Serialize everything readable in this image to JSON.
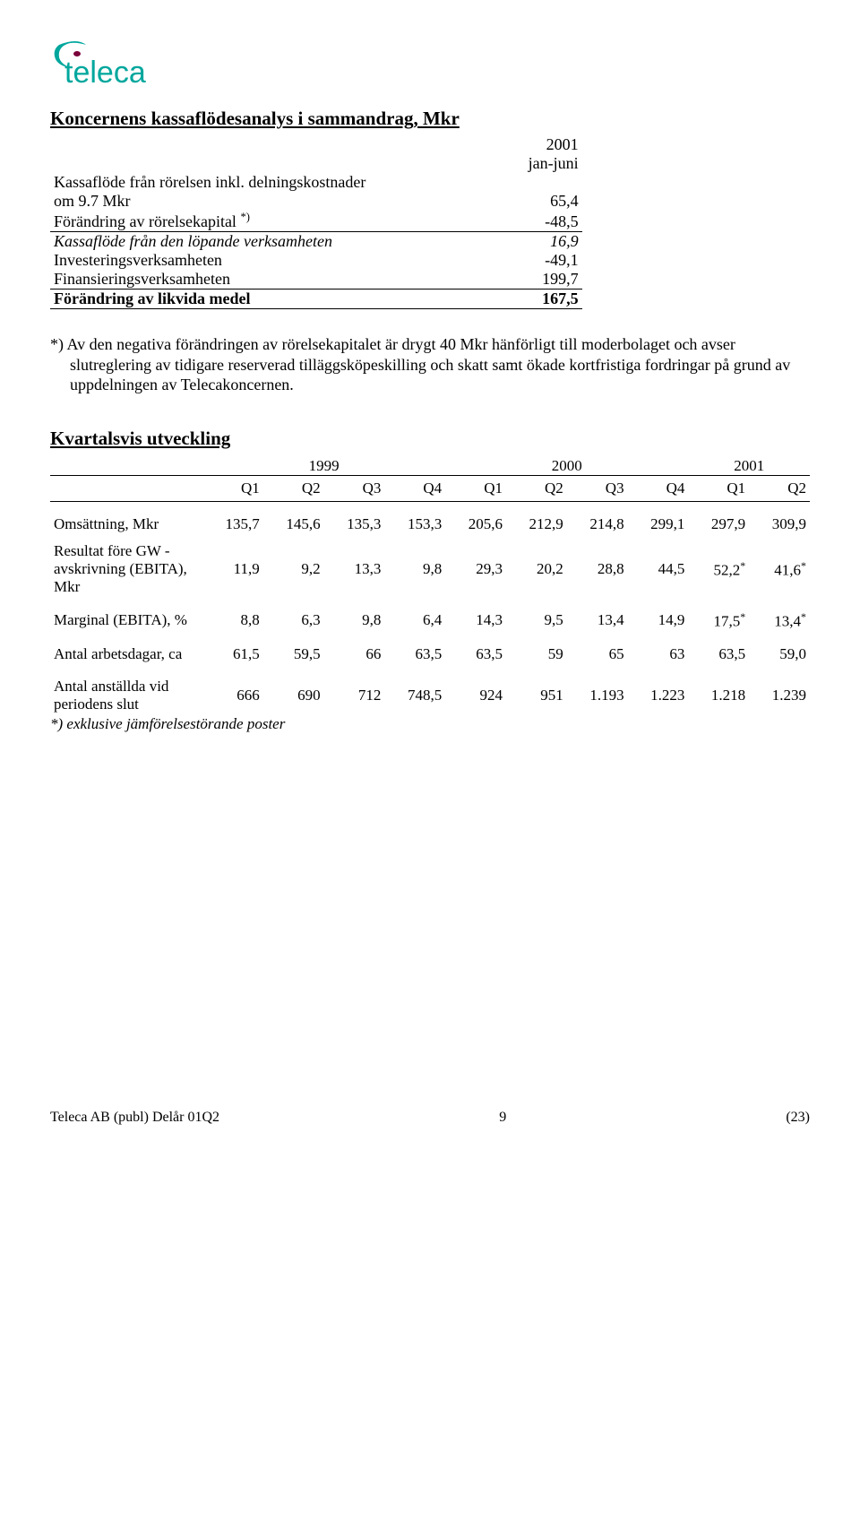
{
  "logo": {
    "text": "teleca",
    "color_main": "#00a79d",
    "color_accent": "#7a003c"
  },
  "cashflow": {
    "title": "Koncernens kassaflödesanalys i sammandrag, Mkr",
    "col_year": "2001",
    "col_period": "jan-juni",
    "rows": [
      {
        "label_1": "Kassaflöde från rörelsen inkl. delningskostnader",
        "label_2": "om 9.7 Mkr",
        "value": "65,4",
        "ul": false,
        "ital": false
      },
      {
        "label_1": "Förändring av rörelsekapital *)",
        "value": "-48,5",
        "ul": true,
        "ital": false,
        "sup": true
      },
      {
        "label_1": "Kassaflöde från den löpande verksamheten",
        "value": "16,9",
        "ul": false,
        "ital": true,
        "sup": false
      },
      {
        "label_1": "Investeringsverksamheten",
        "value": "-49,1",
        "ul": false,
        "ital": false
      },
      {
        "label_1": "Finansieringsverksamheten",
        "value": "199,7",
        "ul": true,
        "ital": false
      },
      {
        "label_1": "Förändring av likvida medel",
        "value": "167,5",
        "ul": true,
        "ital": false,
        "bold": true
      }
    ]
  },
  "footnote": "*)  Av den negativa förändringen av rörelsekapitalet är drygt 40 Mkr hänförligt till moderbolaget och avser slutreglering av tidigare reserverad tilläggsköpeskilling och skatt samt ökade kortfristiga fordringar på grund av uppdelningen av Telecakoncernen.",
  "quarterly": {
    "title": "Kvartalsvis utveckling",
    "years": [
      "1999",
      "2000",
      "2001"
    ],
    "year_span": [
      4,
      4,
      2
    ],
    "quarters": [
      "Q1",
      "Q2",
      "Q3",
      "Q4",
      "Q1",
      "Q2",
      "Q3",
      "Q4",
      "Q1",
      "Q2"
    ],
    "rows": [
      {
        "label": "Omsättning, Mkr",
        "values": [
          "135,7",
          "145,6",
          "135,3",
          "153,3",
          "205,6",
          "212,9",
          "214,8",
          "299,1",
          "297,9",
          "309,9"
        ]
      },
      {
        "label": "Resultat före GW - avskrivning (EBITA), Mkr",
        "values": [
          "11,9",
          "9,2",
          "13,3",
          "9,8",
          "29,3",
          "20,2",
          "28,8",
          "44,5",
          "52,2*",
          "41,6*"
        ],
        "sup_last2": true
      },
      {
        "label": "Marginal (EBITA), %",
        "values": [
          "8,8",
          "6,3",
          "9,8",
          "6,4",
          "14,3",
          "9,5",
          "13,4",
          "14,9",
          "17,5*",
          "13,4*"
        ],
        "sup_last2": true
      },
      {
        "label": "Antal arbetsdagar, ca",
        "values": [
          "61,5",
          "59,5",
          "66",
          "63,5",
          "63,5",
          "59",
          "65",
          "63",
          "63,5",
          "59,0"
        ]
      },
      {
        "label": "Antal anställda vid periodens slut",
        "values": [
          "666",
          "690",
          "712",
          "748,5",
          "924",
          "951",
          "1.193",
          "1.223",
          "1.218",
          "1.239"
        ]
      }
    ],
    "note": "*) exklusive jämförelsestörande poster"
  },
  "footer": {
    "left": "Teleca AB (publ) Delår 01Q2",
    "mid": "9",
    "right": "(23)"
  }
}
